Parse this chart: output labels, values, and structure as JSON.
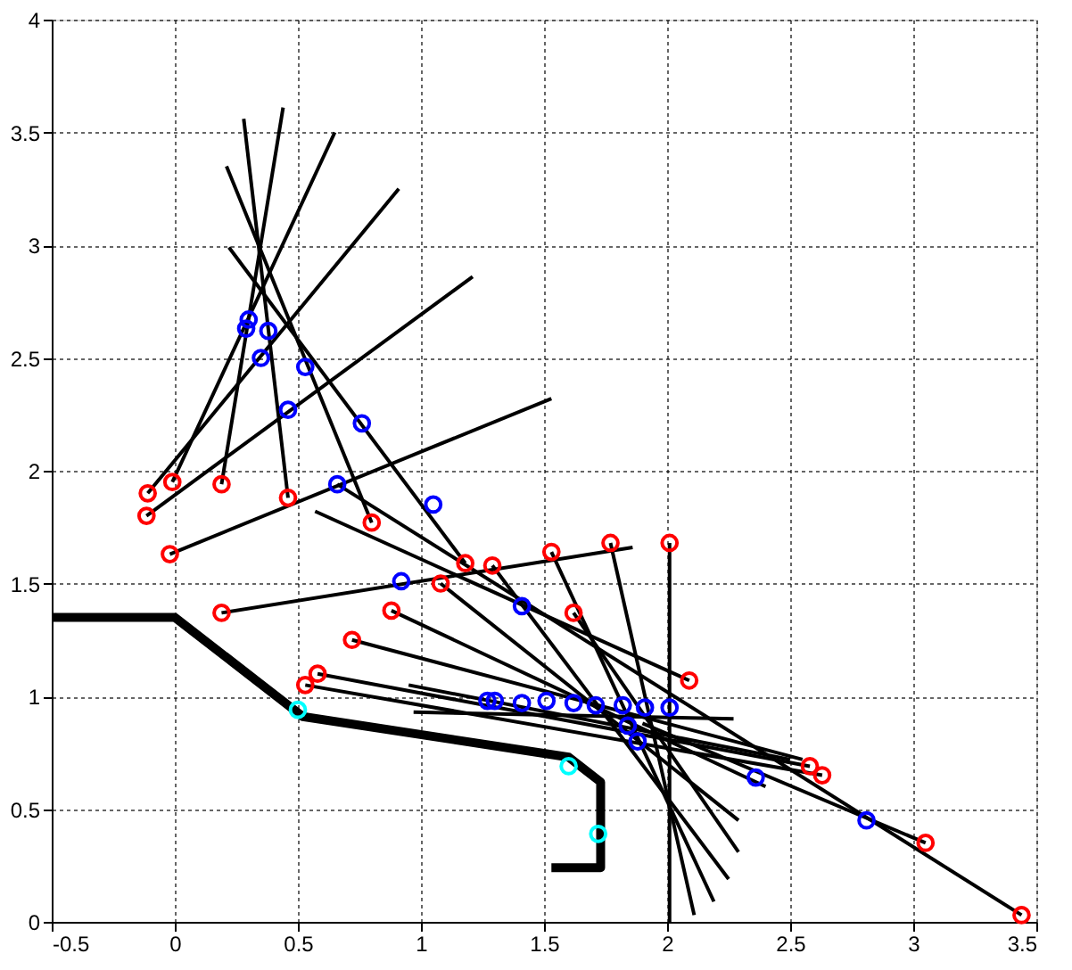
{
  "chart_data": {
    "type": "line",
    "xlim": [
      -0.5,
      3.5
    ],
    "ylim": [
      0,
      4
    ],
    "xticks": [
      -0.5,
      0,
      0.5,
      1,
      1.5,
      2,
      2.5,
      3,
      3.5
    ],
    "yticks": [
      0,
      0.5,
      1,
      1.5,
      2,
      2.5,
      3,
      3.5,
      4
    ],
    "grid": true,
    "line_style": "solid",
    "series": [
      {
        "color": "#000000",
        "x": [
          -0.5,
          0,
          0.52,
          1.6,
          1.73,
          1.73,
          1.53
        ],
        "values": [
          1.35,
          1.35,
          0.91,
          0.73,
          0.62,
          0.24,
          0.24
        ]
      },
      {
        "color": "#000000",
        "x": [
          -0.115,
          1.21
        ],
        "values": [
          1.8,
          2.86
        ]
      },
      {
        "color": "#000000",
        "x": [
          -0.11,
          0.91
        ],
        "values": [
          1.9,
          3.25
        ]
      },
      {
        "color": "#000000",
        "x": [
          -0.01,
          0.65
        ],
        "values": [
          1.95,
          3.5
        ]
      },
      {
        "color": "#000000",
        "x": [
          0.19,
          0.44
        ],
        "values": [
          1.94,
          3.61
        ]
      },
      {
        "color": "#000000",
        "x": [
          0.46,
          0.28
        ],
        "values": [
          1.88,
          3.56
        ]
      },
      {
        "color": "#000000",
        "x": [
          -0.02,
          1.53
        ],
        "values": [
          1.63,
          2.32
        ]
      },
      {
        "color": "#000000",
        "x": [
          0.8,
          0.21
        ],
        "values": [
          1.77,
          3.35
        ]
      },
      {
        "color": "#000000",
        "x": [
          1.18,
          0.22
        ],
        "values": [
          1.59,
          2.99
        ]
      },
      {
        "color": "#000000",
        "x": [
          0.57,
          2.09
        ],
        "values": [
          1.82,
          1.07
        ]
      },
      {
        "color": "#000000",
        "x": [
          0.19,
          1.86
        ],
        "values": [
          1.37,
          1.66
        ]
      },
      {
        "color": "#000000",
        "x": [
          2.01,
          2.01
        ],
        "values": [
          1.68,
          0
        ]
      },
      {
        "color": "#000000",
        "x": [
          1.77,
          2.11
        ],
        "values": [
          1.68,
          0.03
        ]
      },
      {
        "color": "#000000",
        "x": [
          1.53,
          2.19
        ],
        "values": [
          1.64,
          0.09
        ]
      },
      {
        "color": "#000000",
        "x": [
          1.29,
          2.25
        ],
        "values": [
          1.58,
          0.19
        ]
      },
      {
        "color": "#000000",
        "x": [
          1.62,
          2.29
        ],
        "values": [
          1.37,
          0.31
        ]
      },
      {
        "color": "#000000",
        "x": [
          1.08,
          2.29
        ],
        "values": [
          1.5,
          0.45
        ]
      },
      {
        "color": "#000000",
        "x": [
          0.88,
          2.4
        ],
        "values": [
          1.38,
          0.6
        ]
      },
      {
        "color": "#000000",
        "x": [
          0.72,
          2.55
        ],
        "values": [
          1.25,
          0.72
        ]
      },
      {
        "color": "#000000",
        "x": [
          0.58,
          2.58
        ],
        "values": [
          1.1,
          0.69
        ]
      },
      {
        "color": "#000000",
        "x": [
          0.53,
          2.63
        ],
        "values": [
          1.05,
          0.65
        ]
      },
      {
        "color": "#000000",
        "x": [
          0.97,
          2.27
        ],
        "values": [
          0.93,
          0.9
        ]
      },
      {
        "color": "#000000",
        "x": [
          0.95,
          2.5
        ],
        "values": [
          1.05,
          0.72
        ]
      },
      {
        "color": "#000000",
        "x": [
          0.66,
          3.44
        ],
        "values": [
          1.94,
          0.03
        ]
      },
      {
        "color": "#000000",
        "x": [
          1.9,
          3.05
        ],
        "values": [
          0.88,
          0.35
        ]
      },
      {
        "type": "scatter",
        "color": "#ff0000",
        "marker": "circle",
        "x": [
          -0.115,
          -0.11,
          -0.01,
          0.19,
          0.46,
          -0.02,
          0.19,
          0.8,
          1.18,
          1.29,
          1.08,
          0.88,
          1.53,
          1.62,
          1.77,
          2.01,
          2.09,
          0.72,
          0.58,
          0.53,
          2.58,
          2.63,
          3.05,
          3.44
        ],
        "values": [
          1.8,
          1.9,
          1.95,
          1.94,
          1.88,
          1.63,
          1.37,
          1.77,
          1.59,
          1.58,
          1.5,
          1.38,
          1.64,
          1.37,
          1.68,
          1.68,
          1.07,
          1.25,
          1.1,
          1.05,
          0.69,
          0.65,
          0.35,
          0.03
        ]
      },
      {
        "type": "scatter",
        "color": "#0000ff",
        "marker": "circle",
        "x": [
          0.3,
          0.29,
          0.38,
          0.35,
          0.53,
          0.46,
          0.76,
          0.66,
          1.05,
          0.92,
          1.41,
          1.27,
          1.3,
          1.41,
          1.51,
          1.62,
          1.71,
          1.82,
          1.91,
          2.01,
          1.84,
          1.88,
          2.36,
          2.81
        ],
        "values": [
          2.67,
          2.63,
          2.62,
          2.5,
          2.46,
          2.27,
          2.21,
          1.94,
          1.85,
          1.51,
          1.4,
          0.98,
          0.98,
          0.97,
          0.98,
          0.97,
          0.96,
          0.96,
          0.95,
          0.95,
          0.87,
          0.8,
          0.64,
          0.45
        ]
      },
      {
        "type": "scatter",
        "color": "#00ffff",
        "marker": "circle",
        "x": [
          0.5,
          1.6,
          1.72
        ],
        "values": [
          0.94,
          0.69,
          0.39
        ]
      }
    ]
  }
}
